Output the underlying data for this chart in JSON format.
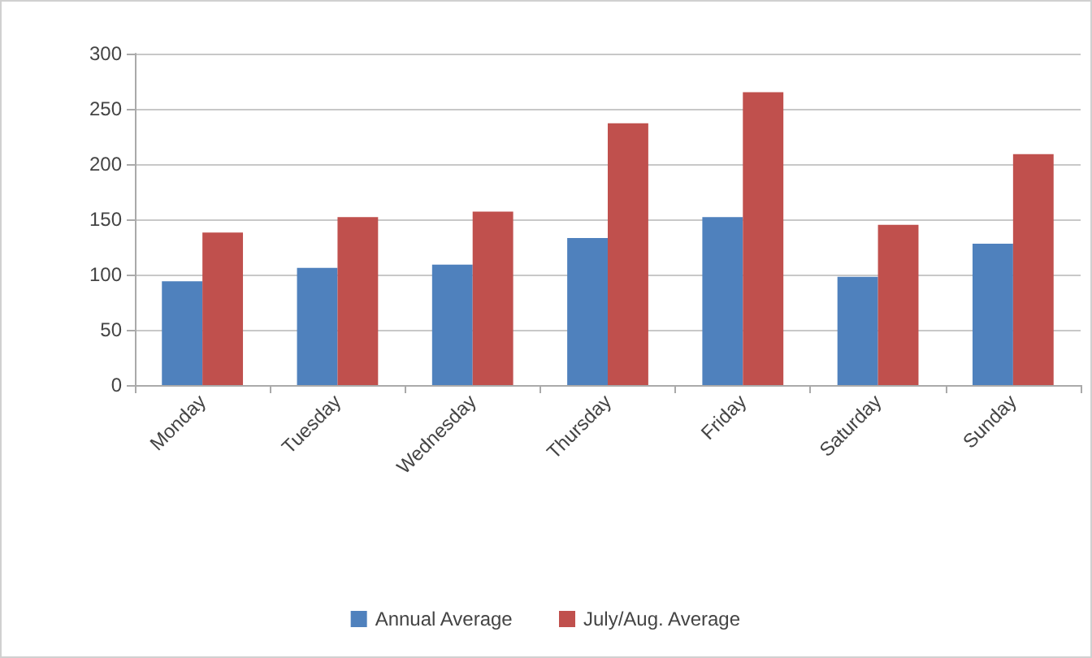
{
  "chart_data": {
    "type": "bar",
    "categories": [
      "Monday",
      "Tuesday",
      "Wednesday",
      "Thursday",
      "Friday",
      "Saturday",
      "Sunday"
    ],
    "series": [
      {
        "name": "Annual Average",
        "color": "#4f81bd",
        "values": [
          94,
          106,
          109,
          133,
          152,
          98,
          128
        ]
      },
      {
        "name": "July/Aug. Average",
        "color": "#c0504d",
        "values": [
          138,
          152,
          157,
          237,
          265,
          145,
          209
        ]
      }
    ],
    "ylim": [
      0,
      300
    ],
    "yticks": [
      0,
      50,
      100,
      150,
      200,
      250,
      300
    ],
    "grid": "y",
    "legend": "bottom"
  }
}
